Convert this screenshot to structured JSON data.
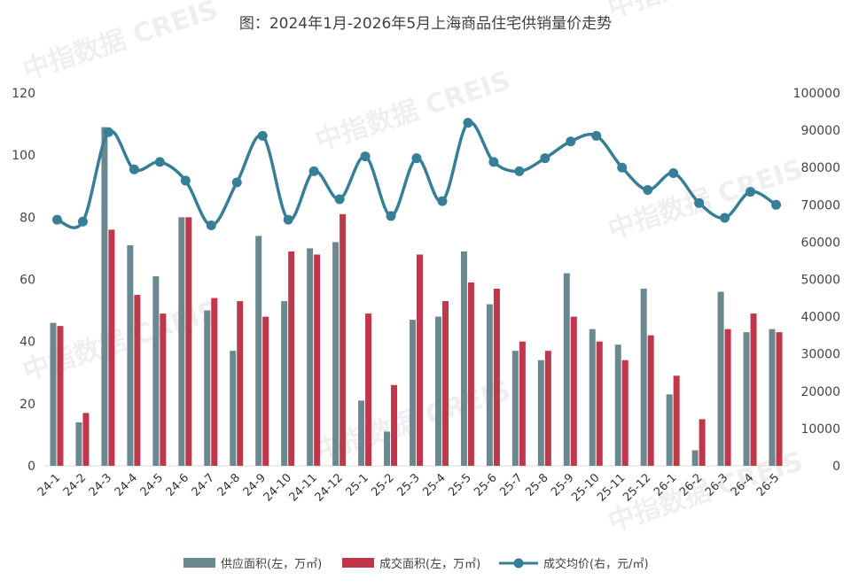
{
  "chart_data": {
    "type": "bar+line",
    "title": "图：2024年1月-2026年5月上海商品住宅供销量价走势",
    "categories": [
      "24-1",
      "24-2",
      "24-3",
      "24-4",
      "24-5",
      "24-6",
      "24-7",
      "24-8",
      "24-9",
      "24-10",
      "24-11",
      "24-12",
      "25-1",
      "25-2",
      "25-3",
      "25-4",
      "25-5",
      "25-6",
      "25-7",
      "25-8",
      "25-9",
      "25-10",
      "25-11",
      "25-12",
      "26-1",
      "26-2",
      "26-3",
      "26-4",
      "26-5"
    ],
    "series": [
      {
        "name": "供应面积(左，万㎡)",
        "type": "bar",
        "axis": "left",
        "color": "#6b8790",
        "values": [
          46,
          14,
          109,
          71,
          61,
          80,
          50,
          37,
          74,
          53,
          70,
          72,
          21,
          11,
          47,
          48,
          69,
          52,
          37,
          34,
          62,
          44,
          39,
          57,
          23,
          5,
          56,
          43,
          44
        ]
      },
      {
        "name": "成交面积(左，万㎡)",
        "type": "bar",
        "axis": "left",
        "color": "#c0364a",
        "values": [
          45,
          17,
          76,
          55,
          49,
          80,
          54,
          53,
          48,
          69,
          68,
          81,
          49,
          26,
          68,
          53,
          59,
          57,
          40,
          37,
          48,
          40,
          34,
          42,
          29,
          15,
          44,
          49,
          43
        ]
      },
      {
        "name": "成交均价(右，元/㎡)",
        "type": "line",
        "axis": "right",
        "color": "#367f97",
        "values": [
          66000,
          65500,
          89500,
          79500,
          81500,
          76500,
          64500,
          76000,
          88500,
          66000,
          79000,
          71500,
          83000,
          67000,
          82500,
          71000,
          92000,
          81500,
          79000,
          82500,
          87000,
          88500,
          80000,
          74000,
          78500,
          70500,
          66500,
          73500,
          70000
        ]
      }
    ],
    "y_left": {
      "min": 0,
      "max": 120,
      "ticks": [
        "0",
        "20",
        "40",
        "60",
        "80",
        "100",
        "120"
      ]
    },
    "y_right": {
      "min": 0,
      "max": 100000,
      "ticks": [
        "0",
        "10000",
        "20000",
        "30000",
        "40000",
        "50000",
        "60000",
        "70000",
        "80000",
        "90000",
        "100000"
      ]
    },
    "grid": false,
    "legend_position": "bottom",
    "watermark": "中指数据 CREIS"
  }
}
